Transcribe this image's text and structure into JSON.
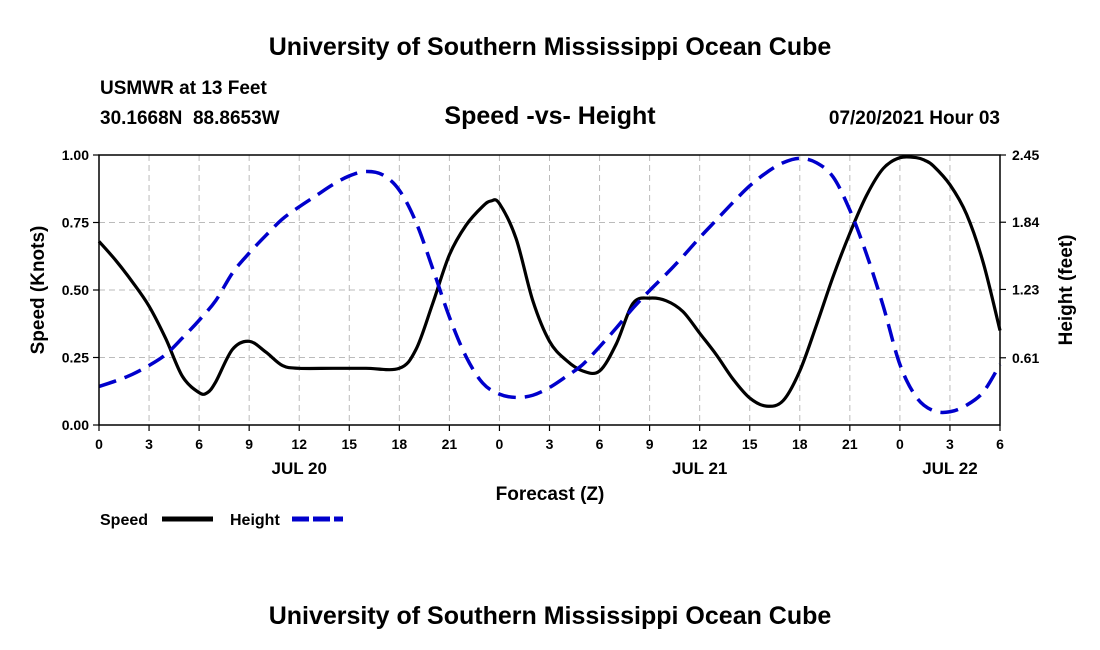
{
  "header": {
    "title": "University of Southern Mississippi Ocean Cube",
    "station": "USMWR at 13 Feet",
    "coords": "30.1668N  88.8653W",
    "datetime": "07/20/2021 Hour 03"
  },
  "footer": {
    "title": "University of Southern Mississippi Ocean Cube"
  },
  "colors": {
    "speed": "#000000",
    "height": "#0000cc",
    "grid": "#bbbbbb"
  },
  "chart_data": {
    "type": "line",
    "title": "Speed -vs- Height",
    "xlabel": "Forecast (Z)",
    "ylabel": "Speed (Knots)",
    "y2label": "Height (feet)",
    "xlim": [
      0,
      54
    ],
    "ylim": [
      0,
      1
    ],
    "y2lim": [
      0,
      2.45
    ],
    "grid": true,
    "x_tick_values": [
      0,
      3,
      6,
      9,
      12,
      15,
      18,
      21,
      24,
      27,
      30,
      33,
      36,
      39,
      42,
      45,
      48,
      51,
      54
    ],
    "x_tick_labels": [
      "0",
      "3",
      "6",
      "9",
      "12",
      "15",
      "18",
      "21",
      "0",
      "3",
      "6",
      "9",
      "12",
      "15",
      "18",
      "21",
      "0",
      "3",
      "6"
    ],
    "y_tick_values": [
      0,
      0.25,
      0.5,
      0.75,
      1.0
    ],
    "y_tick_labels": [
      "0.00",
      "0.25",
      "0.50",
      "0.75",
      "1.00"
    ],
    "y2_tick_values": [
      0.61,
      1.23,
      1.84,
      2.45
    ],
    "y2_tick_labels": [
      "0.61",
      "1.23",
      "1.84",
      "2.45"
    ],
    "date_labels": [
      {
        "x": 12,
        "label": "JUL 20"
      },
      {
        "x": 36,
        "label": "JUL 21"
      },
      {
        "x": 51,
        "label": "JUL 22"
      }
    ],
    "legend": {
      "position": "bottom-left",
      "entries": [
        "Speed",
        "Height"
      ]
    },
    "series": [
      {
        "name": "Speed",
        "axis": "left",
        "style": "solid",
        "x": [
          0,
          1,
          2,
          3,
          4,
          5,
          6,
          6.5,
          7,
          8,
          9,
          10,
          11,
          12,
          14,
          16,
          18,
          19,
          20,
          21,
          22,
          23,
          23.5,
          24,
          25,
          26,
          27,
          28,
          29,
          30,
          31,
          32,
          33,
          34,
          35,
          36,
          37,
          38,
          39,
          40,
          41,
          42,
          43,
          44,
          45,
          46,
          47,
          48,
          49,
          49.5,
          50,
          51,
          52,
          53,
          54
        ],
        "values": [
          0.68,
          0.61,
          0.53,
          0.44,
          0.32,
          0.18,
          0.12,
          0.12,
          0.16,
          0.28,
          0.31,
          0.27,
          0.22,
          0.21,
          0.21,
          0.21,
          0.21,
          0.28,
          0.45,
          0.63,
          0.74,
          0.81,
          0.83,
          0.82,
          0.69,
          0.46,
          0.31,
          0.24,
          0.2,
          0.2,
          0.3,
          0.45,
          0.47,
          0.46,
          0.42,
          0.34,
          0.26,
          0.17,
          0.1,
          0.07,
          0.09,
          0.2,
          0.37,
          0.55,
          0.71,
          0.85,
          0.95,
          0.99,
          0.99,
          0.98,
          0.96,
          0.89,
          0.78,
          0.6,
          0.35
        ]
      },
      {
        "name": "Height",
        "axis": "right",
        "style": "dashed",
        "x": [
          0,
          1,
          2,
          3,
          4,
          5,
          6,
          7,
          8,
          9,
          10,
          11,
          12,
          13,
          14,
          15,
          16,
          17,
          18,
          19,
          20,
          21,
          22,
          23,
          24,
          25,
          26,
          27,
          28,
          29,
          30,
          31,
          32,
          33,
          34,
          35,
          36,
          37,
          38,
          39,
          40,
          41,
          42,
          43,
          44,
          45,
          46,
          47,
          48,
          49,
          50,
          51,
          52,
          53,
          54
        ],
        "values": [
          0.35,
          0.4,
          0.46,
          0.54,
          0.64,
          0.79,
          0.95,
          1.13,
          1.38,
          1.56,
          1.72,
          1.87,
          1.98,
          2.08,
          2.18,
          2.26,
          2.3,
          2.27,
          2.13,
          1.84,
          1.42,
          0.98,
          0.62,
          0.38,
          0.28,
          0.25,
          0.27,
          0.34,
          0.44,
          0.55,
          0.71,
          0.88,
          1.06,
          1.22,
          1.37,
          1.53,
          1.7,
          1.86,
          2.02,
          2.17,
          2.29,
          2.38,
          2.42,
          2.38,
          2.25,
          1.95,
          1.55,
          1.08,
          0.55,
          0.25,
          0.13,
          0.12,
          0.18,
          0.3,
          0.55
        ]
      }
    ]
  }
}
